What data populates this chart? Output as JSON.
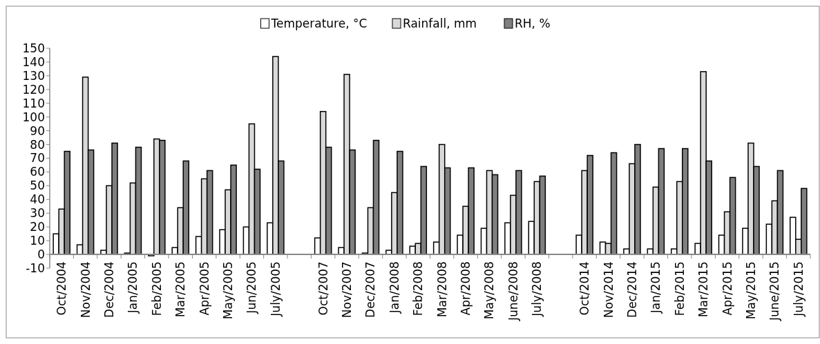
{
  "chart_data": {
    "type": "bar",
    "categories": [
      "Oct/2004",
      "Nov/2004",
      "Dec/2004",
      "Jan/2005",
      "Feb/2005",
      "Mar/2005",
      "Apr/2005",
      "May/2005",
      "Jun/2005",
      "July/2005",
      null,
      "Oct/2007",
      "Nov/2007",
      "Dec/2007",
      "Jan/2008",
      "Feb/2008",
      "Mar/2008",
      "Apr/2008",
      "May/2008",
      "June/2008",
      "July/2008",
      null,
      "Oct/2014",
      "Nov/2014",
      "Dec/2014",
      "Jan/2015",
      "Feb/2015",
      "Mar/2015",
      "Apr/2015",
      "May/2015",
      "June/2015",
      "July/2015"
    ],
    "series": [
      {
        "name": "Temperature, °C",
        "color": "#ffffff",
        "values": [
          15,
          7,
          3,
          1,
          -1,
          5,
          13,
          18,
          20,
          23,
          null,
          12,
          5,
          1,
          3,
          6,
          9,
          14,
          19,
          23,
          24,
          null,
          14,
          9,
          4,
          4,
          4,
          8,
          14,
          19,
          22,
          27
        ]
      },
      {
        "name": "Rainfall, mm",
        "color": "#d9d9d9",
        "values": [
          33,
          129,
          50,
          52,
          84,
          34,
          55,
          47,
          95,
          144,
          null,
          104,
          131,
          34,
          45,
          8,
          80,
          35,
          61,
          43,
          53,
          null,
          61,
          8,
          66,
          49,
          53,
          133,
          31,
          81,
          39,
          11
        ]
      },
      {
        "name": "RH, %",
        "color": "#7f7f7f",
        "values": [
          75,
          76,
          81,
          78,
          83,
          68,
          61,
          65,
          62,
          68,
          null,
          78,
          76,
          83,
          75,
          64,
          63,
          63,
          58,
          61,
          57,
          null,
          72,
          74,
          80,
          77,
          77,
          68,
          56,
          64,
          61,
          48
        ]
      }
    ],
    "ylim": [
      -10,
      150
    ],
    "yticks": [
      -10,
      0,
      10,
      20,
      30,
      40,
      50,
      60,
      70,
      80,
      90,
      100,
      110,
      120,
      130,
      140,
      150
    ],
    "grid": false,
    "legend": "top"
  }
}
